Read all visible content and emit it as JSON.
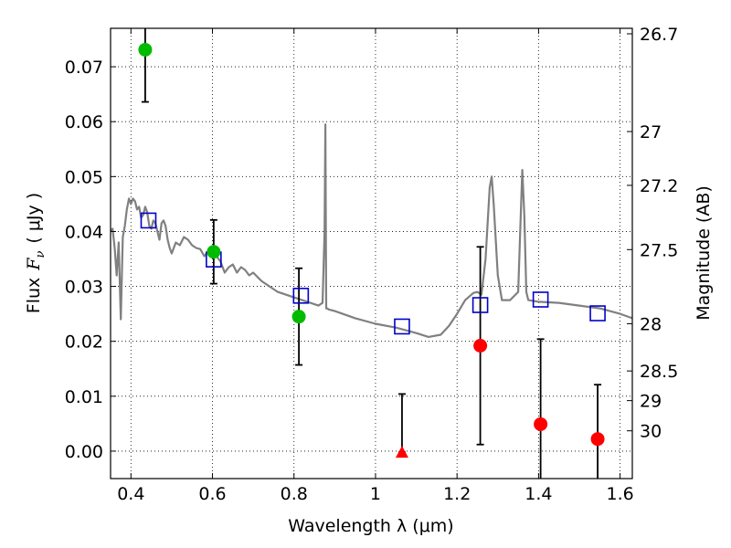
{
  "chart_data": {
    "type": "scatter",
    "xlabel": "Wavelength  λ (μm)",
    "ylabel_prefix": "Flux",
    "ylabel_symbol": "F",
    "ylabel_sub": "ν",
    "ylabel_suffix": "( μJy )",
    "y2label": "Magnitude (AB)",
    "xlim": [
      0.35,
      1.63
    ],
    "ylim": [
      -0.005,
      0.077
    ],
    "grid": true,
    "x_ticks": [
      {
        "value": 0.4,
        "label": "0.4"
      },
      {
        "value": 0.6,
        "label": "0.6"
      },
      {
        "value": 0.8,
        "label": "0.8"
      },
      {
        "value": 1.0,
        "label": "1"
      },
      {
        "value": 1.2,
        "label": "1.2"
      },
      {
        "value": 1.4,
        "label": "1.4"
      },
      {
        "value": 1.6,
        "label": "1.6"
      }
    ],
    "y_ticks": [
      {
        "value": 0.0,
        "label": "0.00"
      },
      {
        "value": 0.01,
        "label": "0.01"
      },
      {
        "value": 0.02,
        "label": "0.02"
      },
      {
        "value": 0.03,
        "label": "0.03"
      },
      {
        "value": 0.04,
        "label": "0.04"
      },
      {
        "value": 0.05,
        "label": "0.05"
      },
      {
        "value": 0.06,
        "label": "0.06"
      },
      {
        "value": 0.07,
        "label": "0.07"
      }
    ],
    "mag_ticks": [
      {
        "label": "26.7",
        "flux": 0.076
      },
      {
        "label": "27",
        "flux": 0.0582
      },
      {
        "label": "27.2",
        "flux": 0.0484
      },
      {
        "label": "27.5",
        "flux": 0.0367
      },
      {
        "label": "28",
        "flux": 0.0232
      },
      {
        "label": "28.5",
        "flux": 0.0146
      },
      {
        "label": "29",
        "flux": 0.0092
      },
      {
        "label": "30",
        "flux": 0.0037
      }
    ],
    "colors": {
      "model": "#808080",
      "detections": "#00bb00",
      "nondetections": "#ff0000",
      "model_photometry": "#0000cc",
      "errorbars": "#000000"
    },
    "series": [
      {
        "kind": "model_spectrum",
        "x": [
          0.35,
          0.355,
          0.36,
          0.365,
          0.37,
          0.375,
          0.38,
          0.385,
          0.39,
          0.395,
          0.4,
          0.405,
          0.41,
          0.415,
          0.42,
          0.425,
          0.43,
          0.435,
          0.44,
          0.445,
          0.45,
          0.455,
          0.46,
          0.465,
          0.47,
          0.475,
          0.48,
          0.485,
          0.49,
          0.495,
          0.5,
          0.51,
          0.52,
          0.53,
          0.54,
          0.55,
          0.56,
          0.57,
          0.58,
          0.59,
          0.6,
          0.61,
          0.62,
          0.63,
          0.64,
          0.65,
          0.66,
          0.67,
          0.68,
          0.69,
          0.7,
          0.72,
          0.74,
          0.76,
          0.78,
          0.8,
          0.82,
          0.84,
          0.86,
          0.87,
          0.875,
          0.877,
          0.879,
          0.881,
          0.885,
          0.9,
          0.95,
          1.0,
          1.05,
          1.1,
          1.13,
          1.16,
          1.18,
          1.2,
          1.22,
          1.24,
          1.25,
          1.26,
          1.27,
          1.28,
          1.285,
          1.29,
          1.3,
          1.31,
          1.33,
          1.35,
          1.355,
          1.36,
          1.365,
          1.37,
          1.375,
          1.4,
          1.45,
          1.5,
          1.55,
          1.6,
          1.63
        ],
        "y": [
          0.04,
          0.0405,
          0.037,
          0.032,
          0.038,
          0.024,
          0.039,
          0.041,
          0.044,
          0.046,
          0.045,
          0.046,
          0.0455,
          0.044,
          0.0445,
          0.0425,
          0.043,
          0.0445,
          0.0435,
          0.041,
          0.0405,
          0.042,
          0.0415,
          0.04,
          0.0385,
          0.0415,
          0.042,
          0.041,
          0.0385,
          0.037,
          0.036,
          0.038,
          0.0375,
          0.039,
          0.0385,
          0.0375,
          0.037,
          0.0368,
          0.0355,
          0.0365,
          0.0372,
          0.0355,
          0.0345,
          0.0325,
          0.0335,
          0.034,
          0.0325,
          0.0335,
          0.033,
          0.032,
          0.0325,
          0.031,
          0.03,
          0.029,
          0.0285,
          0.028,
          0.0275,
          0.027,
          0.0265,
          0.027,
          0.04,
          0.0595,
          0.026,
          0.026,
          0.0258,
          0.0255,
          0.0242,
          0.0232,
          0.0225,
          0.0215,
          0.0208,
          0.0212,
          0.0228,
          0.025,
          0.0275,
          0.0288,
          0.029,
          0.0285,
          0.035,
          0.048,
          0.05,
          0.045,
          0.032,
          0.0275,
          0.0275,
          0.029,
          0.04,
          0.0512,
          0.043,
          0.029,
          0.0275,
          0.0272,
          0.027,
          0.0265,
          0.026,
          0.025,
          0.0242
        ]
      },
      {
        "kind": "detections",
        "points": [
          {
            "x": 0.435,
            "y": 0.0731,
            "yerr": 0.0095
          },
          {
            "x": 0.603,
            "y": 0.0363,
            "yerr": 0.0058
          },
          {
            "x": 0.812,
            "y": 0.0245,
            "yerr": 0.0088
          }
        ]
      },
      {
        "kind": "nondetections",
        "points": [
          {
            "x": 1.257,
            "y": 0.0192,
            "yerr": 0.018
          },
          {
            "x": 1.405,
            "y": 0.0049,
            "yerr": 0.0155
          },
          {
            "x": 1.545,
            "y": 0.0022,
            "yerr": 0.0099
          }
        ]
      },
      {
        "kind": "nondetection_limit",
        "points": [
          {
            "x": 1.065,
            "y": -0.0002,
            "yerr_upper": 0.0106
          }
        ]
      },
      {
        "kind": "model_photometry",
        "points": [
          {
            "x": 0.443,
            "y": 0.042
          },
          {
            "x": 0.603,
            "y": 0.0349
          },
          {
            "x": 0.817,
            "y": 0.0283
          },
          {
            "x": 1.065,
            "y": 0.0227
          },
          {
            "x": 1.257,
            "y": 0.0266
          },
          {
            "x": 1.405,
            "y": 0.0276
          },
          {
            "x": 1.545,
            "y": 0.0251
          }
        ]
      }
    ]
  }
}
